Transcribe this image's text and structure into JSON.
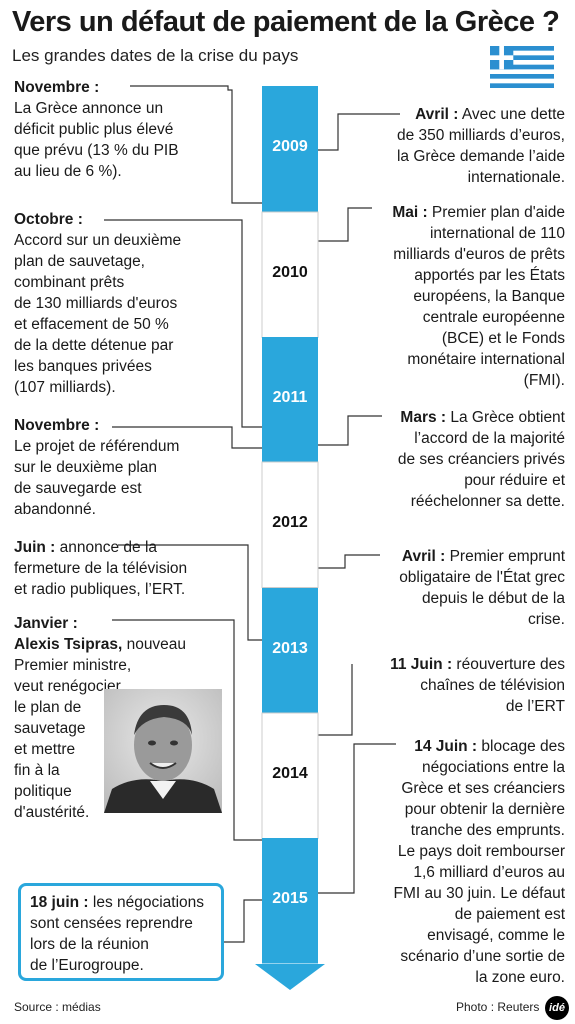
{
  "header": {
    "title": "Vers un défaut de paiement de la Grèce ?",
    "subtitle": "Les grandes dates de la crise du pays"
  },
  "colors": {
    "accent": "#2aa7dc",
    "flag_blue": "#2b8fd0",
    "line": "#333333"
  },
  "years": [
    "2009",
    "2010",
    "2011",
    "2012",
    "2013",
    "2014",
    "2015"
  ],
  "events_left": [
    {
      "date": "Novembre :",
      "text": [
        "La Grèce annonce un",
        "déficit public plus élevé",
        "que prévu (13 % du PIB",
        "au lieu de 6 %)."
      ]
    },
    {
      "date": "Octobre :",
      "text": [
        "Accord sur un deuxième",
        "plan de sauvetage,",
        "combinant prêts",
        "de 130 milliards d'euros",
        "et effacement de 50 %",
        "de la dette détenue par",
        "les banques privées",
        "(107 milliards)."
      ]
    },
    {
      "date": "Novembre :",
      "text": [
        "Le projet de référendum",
        "sur le deuxième plan",
        "de sauvegarde est",
        "abandonné."
      ]
    },
    {
      "date": "Juin :",
      "first": " annonce de la",
      "text": [
        "fermeture de la télévision",
        "et radio publiques, l’ERT."
      ]
    },
    {
      "date": "Janvier :",
      "bold2": "Alexis Tsipras,",
      "first": " nouveau",
      "text": [
        "Premier ministre,",
        "veut renégocier",
        "le plan de",
        "sauvetage",
        "et mettre",
        "fin à la",
        "politique",
        "d'austérité."
      ]
    },
    {
      "date": "18 juin :",
      "first": " les négociations",
      "text": [
        "sont censées reprendre",
        "lors de la réunion",
        "de l’Eurogroupe."
      ]
    }
  ],
  "events_right": [
    {
      "date": "Avril :",
      "first": " Avec une dette",
      "text": [
        "de 350 milliards d’euros,",
        "la Grèce demande l’aide",
        "internationale."
      ]
    },
    {
      "date": "Mai :",
      "first": " Premier plan d'aide",
      "text": [
        "international de 110",
        "milliards d'euros de prêts",
        "apportés par les États",
        "européens, la Banque",
        "centrale européenne",
        "(BCE) et le Fonds",
        "monétaire international",
        "(FMI)."
      ]
    },
    {
      "date": "Mars :",
      "first": " La Grèce obtient",
      "text": [
        "l’accord de la majorité",
        "de ses créanciers privés",
        "pour réduire et",
        "rééchelonner sa dette."
      ]
    },
    {
      "date": "Avril :",
      "first": " Premier emprunt",
      "text": [
        "obligataire de l'État grec",
        "depuis le début de la",
        "crise."
      ]
    },
    {
      "date": "11 Juin :",
      "first": " réouverture des",
      "text": [
        "chaînes de télévision",
        "de l’ERT"
      ]
    },
    {
      "date": "14 Juin :",
      "first": " blocage des",
      "text": [
        "négociations entre la",
        "Grèce et ses créanciers",
        "pour obtenir la dernière",
        "tranche des emprunts.",
        "Le pays doit rembourser",
        "1,6 milliard d’euros au",
        "FMI au 30 juin. Le défaut",
        "de paiement est",
        "envisagé, comme le",
        "scénario d’une sortie de",
        "la zone euro."
      ]
    }
  ],
  "footer": {
    "source": "Source : médias",
    "photo": "Photo : Reuters",
    "logo": "idé"
  },
  "icons": {
    "flag": "greek-flag-icon",
    "portrait": "portrait-icon"
  }
}
